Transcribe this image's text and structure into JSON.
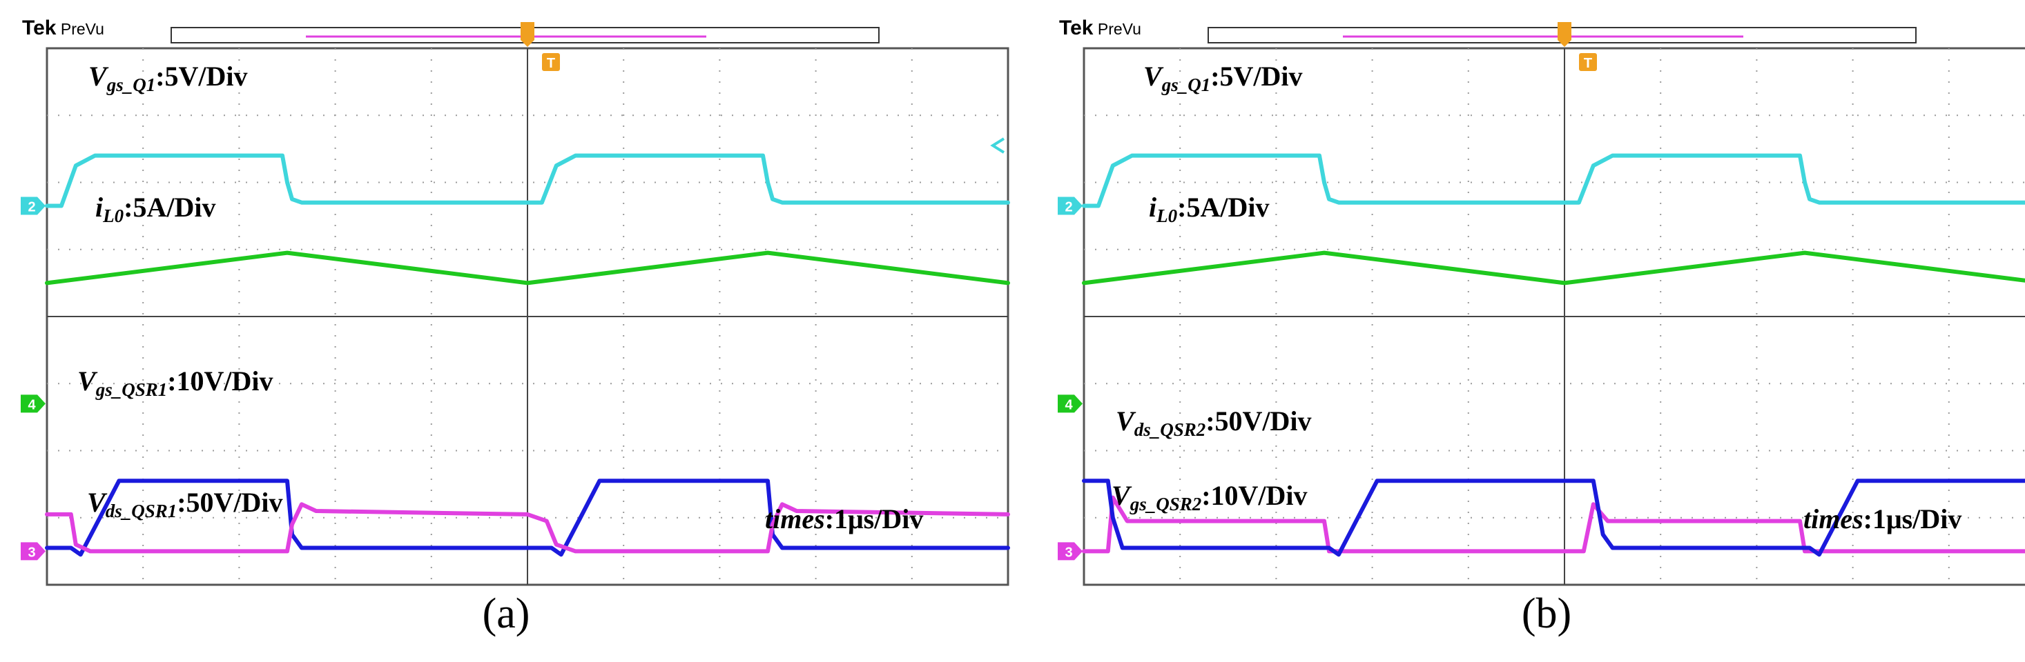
{
  "panels": [
    {
      "brand": "Tek",
      "mode": "PreVu",
      "caption": "(a)",
      "trigger_marker": "T",
      "channel_markers": [
        "2",
        "4",
        "3"
      ],
      "labels": [
        {
          "italic": "V",
          "sub": "gs_Q1",
          "tail": ":5V/Div"
        },
        {
          "italic": "i",
          "sub": "L0",
          "tail": ":5A/Div"
        },
        {
          "italic": "V",
          "sub": "gs_QSR1",
          "tail": ":10V/Div"
        },
        {
          "italic": "V",
          "sub": "ds_QSR1",
          "tail": ":50V/Div"
        }
      ],
      "time_scale": {
        "italic": "times",
        "tail": ":1μs/Div"
      }
    },
    {
      "brand": "Tek",
      "mode": "PreVu",
      "caption": "(b)",
      "trigger_marker": "T",
      "channel_markers": [
        "2",
        "4",
        "3"
      ],
      "labels": [
        {
          "italic": "V",
          "sub": "gs_Q1",
          "tail": ":5V/Div"
        },
        {
          "italic": "i",
          "sub": "L0",
          "tail": ":5A/Div"
        },
        {
          "italic": "V",
          "sub": "ds_QSR2",
          "tail": ":50V/Div"
        },
        {
          "italic": "V",
          "sub": "gs_QSR2",
          "tail": ":10V/Div"
        }
      ],
      "time_scale": {
        "italic": "times",
        "tail": ":1μs/Div"
      }
    }
  ],
  "colors": {
    "ch_gate_q1": "#3fd6dc",
    "ch_inductor": "#1ec81e",
    "ch_gate_sr": "#1a1adc",
    "ch_drain_sr": "#e040e0",
    "trigger": "#f0a020",
    "grid": "#9a9a9a",
    "frame": "#555555"
  },
  "chart_data": [
    {
      "type": "line",
      "caption": "(a)",
      "x_unit": "div",
      "x_divisions": 10,
      "y_divisions": 8,
      "time_per_div": "1μs",
      "trigger_x": 5,
      "series": [
        {
          "name": "V_gs_Q1",
          "scale": "5V/Div",
          "color": "#3fd6dc",
          "x": [
            0,
            0.15,
            0.3,
            0.5,
            2.45,
            2.5,
            2.55,
            2.65,
            5.0,
            5.15,
            5.3,
            5.5,
            7.45,
            7.5,
            7.55,
            7.65,
            10
          ],
          "y": [
            5.65,
            5.65,
            6.25,
            6.4,
            6.4,
            6.0,
            5.75,
            5.7,
            5.7,
            5.7,
            6.25,
            6.4,
            6.4,
            6.0,
            5.75,
            5.7,
            5.7
          ]
        },
        {
          "name": "i_L0",
          "scale": "5A/Div",
          "color": "#1ec81e",
          "x": [
            0,
            2.5,
            5.0,
            7.5,
            10
          ],
          "y": [
            4.5,
            4.95,
            4.5,
            4.95,
            4.5
          ]
        },
        {
          "name": "V_gs_QSR1",
          "scale": "10V/Div",
          "color": "#1a1adc",
          "x": [
            0,
            0.25,
            0.35,
            0.55,
            0.75,
            2.5,
            2.55,
            2.65,
            5.0,
            5.25,
            5.35,
            5.55,
            5.75,
            7.5,
            7.55,
            7.65,
            10
          ],
          "y": [
            0.55,
            0.55,
            0.45,
            1.0,
            1.55,
            1.55,
            0.75,
            0.55,
            0.55,
            0.55,
            0.45,
            1.0,
            1.55,
            1.55,
            0.75,
            0.55,
            0.55
          ]
        },
        {
          "name": "V_ds_QSR1",
          "scale": "50V/Div",
          "color": "#e040e0",
          "x": [
            0,
            0.25,
            0.3,
            0.45,
            2.5,
            2.55,
            2.65,
            2.8,
            5.0,
            5.2,
            5.3,
            5.5,
            7.5,
            7.55,
            7.65,
            7.8,
            10
          ],
          "y": [
            1.05,
            1.05,
            0.6,
            0.5,
            0.5,
            0.9,
            1.2,
            1.1,
            1.05,
            0.95,
            0.6,
            0.5,
            0.5,
            0.9,
            1.2,
            1.1,
            1.05
          ]
        }
      ],
      "annotations": [
        "times:1μs/Div"
      ]
    },
    {
      "type": "line",
      "caption": "(b)",
      "x_unit": "div",
      "x_divisions": 10,
      "y_divisions": 8,
      "time_per_div": "1μs",
      "trigger_x": 5,
      "series": [
        {
          "name": "V_gs_Q1",
          "scale": "5V/Div",
          "color": "#3fd6dc",
          "x": [
            0,
            0.15,
            0.3,
            0.5,
            2.45,
            2.5,
            2.55,
            2.65,
            5.0,
            5.15,
            5.3,
            5.5,
            7.45,
            7.5,
            7.55,
            7.65,
            10
          ],
          "y": [
            5.65,
            5.65,
            6.25,
            6.4,
            6.4,
            6.0,
            5.75,
            5.7,
            5.7,
            5.7,
            6.25,
            6.4,
            6.4,
            6.0,
            5.75,
            5.7,
            5.7
          ]
        },
        {
          "name": "i_L0",
          "scale": "5A/Div",
          "color": "#1ec81e",
          "x": [
            0,
            2.5,
            5.0,
            7.5,
            10
          ],
          "y": [
            4.5,
            4.95,
            4.5,
            4.95,
            4.5
          ]
        },
        {
          "name": "V_ds_QSR2",
          "scale": "50V/Div",
          "color": "#e040e0",
          "x": [
            0,
            0.25,
            0.3,
            0.45,
            2.5,
            2.55,
            2.65,
            2.75,
            5.0,
            5.2,
            5.3,
            5.45,
            7.45,
            7.5,
            7.55,
            7.65,
            10
          ],
          "y": [
            0.5,
            0.5,
            1.3,
            0.95,
            0.95,
            0.5,
            0.5,
            0.5,
            0.5,
            0.5,
            1.2,
            0.95,
            0.95,
            0.5,
            0.5,
            0.5,
            0.5
          ]
        },
        {
          "name": "V_gs_QSR2",
          "scale": "10V/Div",
          "color": "#1a1adc",
          "x": [
            0,
            0.25,
            0.3,
            0.4,
            2.55,
            2.65,
            2.85,
            3.05,
            5.3,
            5.4,
            5.5,
            7.55,
            7.65,
            7.85,
            8.05,
            10
          ],
          "y": [
            1.55,
            1.55,
            1.0,
            0.55,
            0.55,
            0.45,
            1.0,
            1.55,
            1.55,
            0.75,
            0.55,
            0.55,
            0.45,
            1.0,
            1.55,
            1.55
          ]
        }
      ],
      "annotations": [
        "times:1μs/Div"
      ]
    }
  ]
}
